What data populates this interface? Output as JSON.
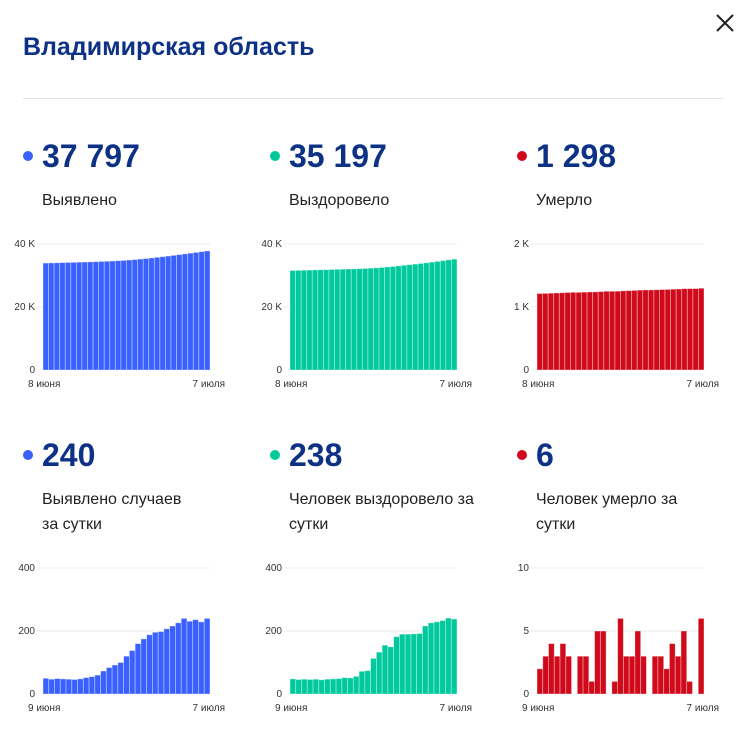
{
  "title": "Владимирская область",
  "colors": {
    "confirmed": "#3a60ff",
    "recovered": "#00c99e",
    "deaths": "#d10a1b",
    "heading": "#0d3285"
  },
  "stats": [
    {
      "value": "37 797",
      "label": "Выявлено",
      "color": "#3a60ff"
    },
    {
      "value": "35 197",
      "label": "Выздоровело",
      "color": "#00c99e"
    },
    {
      "value": "1 298",
      "label": "Умерло",
      "color": "#d10a1b"
    },
    {
      "value": "240",
      "label": "Выявлено случаев за сутки",
      "color": "#3a60ff"
    },
    {
      "value": "238",
      "label": "Человек выздоровело за сутки",
      "color": "#00c99e"
    },
    {
      "value": "6",
      "label": "Человек умерло за сутки",
      "color": "#d10a1b"
    }
  ],
  "chart_data": [
    {
      "type": "bar",
      "title": "Выявлено",
      "color": "#3a60ff",
      "ylim": [
        0,
        40000
      ],
      "yticks": [
        "0",
        "20 K",
        "40 K"
      ],
      "ytick_values": [
        0,
        20000,
        40000
      ],
      "x_start": "8 июня",
      "x_end": "7 июля",
      "values": [
        33946,
        33996,
        34043,
        34092,
        34140,
        34187,
        34233,
        34281,
        34333,
        34388,
        34448,
        34521,
        34605,
        34697,
        34797,
        34917,
        35055,
        35215,
        35390,
        35578,
        35774,
        35972,
        36179,
        36395,
        36621,
        36861,
        37092,
        37328,
        37557,
        37797
      ]
    },
    {
      "type": "bar",
      "title": "Выздоровело",
      "color": "#00c99e",
      "ylim": [
        0,
        40000
      ],
      "yticks": [
        "0",
        "20 K",
        "40 K"
      ],
      "ytick_values": [
        0,
        20000,
        40000
      ],
      "x_start": "8 июня",
      "x_end": "7 июля",
      "values": [
        31590,
        31638,
        31684,
        31731,
        31777,
        31824,
        31869,
        31916,
        31964,
        32013,
        32065,
        32116,
        32172,
        32244,
        32318,
        32431,
        32564,
        32719,
        32869,
        33051,
        33241,
        33431,
        33622,
        33814,
        34030,
        34256,
        34485,
        34718,
        34959,
        35197
      ]
    },
    {
      "type": "bar",
      "title": "Умерло",
      "color": "#d10a1b",
      "ylim": [
        0,
        2000
      ],
      "yticks": [
        "0",
        "1 K",
        "2 K"
      ],
      "ytick_values": [
        0,
        1000,
        2000
      ],
      "x_start": "8 июня",
      "x_end": "7 июля",
      "values": [
        1214,
        1216,
        1219,
        1223,
        1226,
        1230,
        1233,
        1233,
        1236,
        1239,
        1240,
        1245,
        1250,
        1250,
        1251,
        1257,
        1260,
        1263,
        1268,
        1271,
        1271,
        1274,
        1277,
        1279,
        1283,
        1286,
        1291,
        1292,
        1292,
        1298
      ]
    },
    {
      "type": "bar",
      "title": "Выявлено случаев за сутки",
      "color": "#3a60ff",
      "ylim": [
        0,
        400
      ],
      "yticks": [
        "0",
        "200",
        "400"
      ],
      "ytick_values": [
        0,
        200,
        400
      ],
      "x_start": "9 июня",
      "x_end": "7 июля",
      "values": [
        50,
        47,
        49,
        48,
        47,
        46,
        48,
        52,
        55,
        60,
        73,
        84,
        92,
        100,
        120,
        138,
        160,
        175,
        188,
        196,
        198,
        207,
        216,
        226,
        240,
        231,
        236,
        229,
        240
      ]
    },
    {
      "type": "bar",
      "title": "Человек выздоровело за сутки",
      "color": "#00c99e",
      "ylim": [
        0,
        400
      ],
      "yticks": [
        "0",
        "200",
        "400"
      ],
      "ytick_values": [
        0,
        200,
        400
      ],
      "x_start": "9 июня",
      "x_end": "7 июля",
      "values": [
        48,
        46,
        47,
        46,
        47,
        45,
        47,
        48,
        49,
        52,
        51,
        56,
        72,
        74,
        113,
        133,
        155,
        150,
        182,
        190,
        190,
        191,
        192,
        216,
        226,
        229,
        233,
        241,
        238
      ]
    },
    {
      "type": "bar",
      "title": "Человек умерло за сутки",
      "color": "#d10a1b",
      "ylim": [
        0,
        10
      ],
      "yticks": [
        "0",
        "5",
        "10"
      ],
      "ytick_values": [
        0,
        5,
        10
      ],
      "x_start": "9 июня",
      "x_end": "7 июля",
      "values": [
        2,
        3,
        4,
        3,
        4,
        3,
        0,
        3,
        3,
        1,
        5,
        5,
        0,
        1,
        6,
        3,
        3,
        5,
        3,
        0,
        3,
        3,
        2,
        4,
        3,
        5,
        1,
        0,
        6
      ]
    }
  ]
}
